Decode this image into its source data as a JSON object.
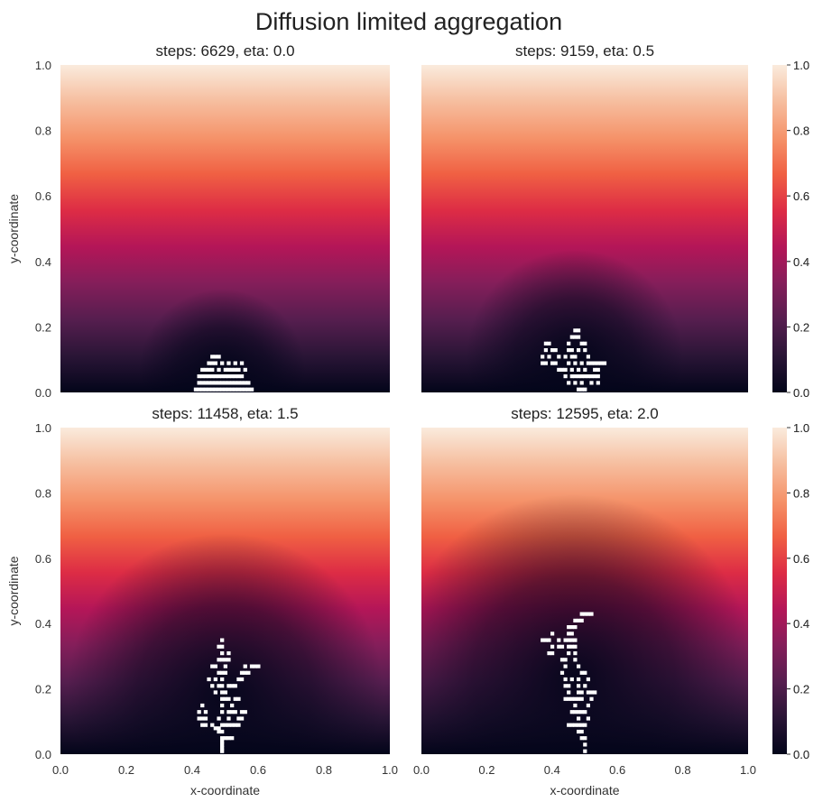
{
  "figure_title": "Diffusion limited aggregation",
  "colormap": {
    "name": "rocket",
    "stops": [
      "#03051a",
      "#2a1536",
      "#561e4f",
      "#841e5a",
      "#b41658",
      "#dd2c45",
      "#f06043",
      "#f5936a",
      "#f6be9f",
      "#faebdd"
    ]
  },
  "cluster_color": "#ffffff",
  "chart_data": [
    {
      "type": "heatmap",
      "title": "steps: 6629, eta: 0.0",
      "xlabel": "",
      "ylabel": "y-coordinate",
      "xlim": [
        0.0,
        1.0
      ],
      "ylim": [
        0.0,
        1.0
      ],
      "grid": false,
      "field": "concentration rising from 0.0 at the cluster/bottom to 1.0 at the top",
      "cluster_cells": [
        [
          0.41,
          0.01
        ],
        [
          0.42,
          0.01
        ],
        [
          0.43,
          0.01
        ],
        [
          0.44,
          0.01
        ],
        [
          0.45,
          0.01
        ],
        [
          0.46,
          0.01
        ],
        [
          0.47,
          0.01
        ],
        [
          0.48,
          0.01
        ],
        [
          0.49,
          0.01
        ],
        [
          0.5,
          0.01
        ],
        [
          0.51,
          0.01
        ],
        [
          0.52,
          0.01
        ],
        [
          0.53,
          0.01
        ],
        [
          0.54,
          0.01
        ],
        [
          0.55,
          0.01
        ],
        [
          0.56,
          0.01
        ],
        [
          0.57,
          0.01
        ],
        [
          0.58,
          0.01
        ],
        [
          0.42,
          0.03
        ],
        [
          0.43,
          0.03
        ],
        [
          0.44,
          0.03
        ],
        [
          0.45,
          0.03
        ],
        [
          0.46,
          0.03
        ],
        [
          0.47,
          0.03
        ],
        [
          0.48,
          0.03
        ],
        [
          0.49,
          0.03
        ],
        [
          0.5,
          0.03
        ],
        [
          0.51,
          0.03
        ],
        [
          0.52,
          0.03
        ],
        [
          0.53,
          0.03
        ],
        [
          0.54,
          0.03
        ],
        [
          0.55,
          0.03
        ],
        [
          0.56,
          0.03
        ],
        [
          0.57,
          0.03
        ],
        [
          0.42,
          0.05
        ],
        [
          0.43,
          0.05
        ],
        [
          0.44,
          0.05
        ],
        [
          0.45,
          0.05
        ],
        [
          0.46,
          0.05
        ],
        [
          0.47,
          0.05
        ],
        [
          0.48,
          0.05
        ],
        [
          0.49,
          0.05
        ],
        [
          0.5,
          0.05
        ],
        [
          0.51,
          0.05
        ],
        [
          0.52,
          0.05
        ],
        [
          0.53,
          0.05
        ],
        [
          0.54,
          0.05
        ],
        [
          0.55,
          0.05
        ],
        [
          0.43,
          0.07
        ],
        [
          0.44,
          0.07
        ],
        [
          0.45,
          0.07
        ],
        [
          0.46,
          0.07
        ],
        [
          0.48,
          0.07
        ],
        [
          0.5,
          0.07
        ],
        [
          0.51,
          0.07
        ],
        [
          0.52,
          0.07
        ],
        [
          0.53,
          0.07
        ],
        [
          0.54,
          0.07
        ],
        [
          0.56,
          0.07
        ],
        [
          0.45,
          0.09
        ],
        [
          0.46,
          0.09
        ],
        [
          0.47,
          0.09
        ],
        [
          0.49,
          0.09
        ],
        [
          0.51,
          0.09
        ],
        [
          0.53,
          0.09
        ],
        [
          0.55,
          0.09
        ],
        [
          0.46,
          0.11
        ],
        [
          0.47,
          0.11
        ],
        [
          0.48,
          0.11
        ]
      ]
    },
    {
      "type": "heatmap",
      "title": "steps: 9159, eta: 0.5",
      "xlabel": "",
      "ylabel": "",
      "xlim": [
        0.0,
        1.0
      ],
      "ylim": [
        0.0,
        1.0
      ],
      "grid": false,
      "field": "concentration rising from 0.0 at the cluster/bottom to 1.0 at the top",
      "cluster_cells": [
        [
          0.48,
          0.01
        ],
        [
          0.49,
          0.01
        ],
        [
          0.5,
          0.01
        ],
        [
          0.45,
          0.03
        ],
        [
          0.47,
          0.03
        ],
        [
          0.49,
          0.03
        ],
        [
          0.52,
          0.03
        ],
        [
          0.54,
          0.03
        ],
        [
          0.44,
          0.05
        ],
        [
          0.46,
          0.05
        ],
        [
          0.47,
          0.05
        ],
        [
          0.48,
          0.05
        ],
        [
          0.49,
          0.05
        ],
        [
          0.5,
          0.05
        ],
        [
          0.51,
          0.05
        ],
        [
          0.52,
          0.05
        ],
        [
          0.53,
          0.05
        ],
        [
          0.54,
          0.05
        ],
        [
          0.42,
          0.07
        ],
        [
          0.43,
          0.07
        ],
        [
          0.44,
          0.07
        ],
        [
          0.46,
          0.07
        ],
        [
          0.48,
          0.07
        ],
        [
          0.5,
          0.07
        ],
        [
          0.53,
          0.07
        ],
        [
          0.54,
          0.07
        ],
        [
          0.37,
          0.09
        ],
        [
          0.38,
          0.09
        ],
        [
          0.4,
          0.09
        ],
        [
          0.41,
          0.09
        ],
        [
          0.45,
          0.09
        ],
        [
          0.47,
          0.09
        ],
        [
          0.49,
          0.09
        ],
        [
          0.51,
          0.09
        ],
        [
          0.52,
          0.09
        ],
        [
          0.53,
          0.09
        ],
        [
          0.54,
          0.09
        ],
        [
          0.55,
          0.09
        ],
        [
          0.56,
          0.09
        ],
        [
          0.37,
          0.11
        ],
        [
          0.39,
          0.11
        ],
        [
          0.42,
          0.11
        ],
        [
          0.44,
          0.11
        ],
        [
          0.46,
          0.11
        ],
        [
          0.47,
          0.11
        ],
        [
          0.51,
          0.11
        ],
        [
          0.38,
          0.13
        ],
        [
          0.4,
          0.13
        ],
        [
          0.41,
          0.13
        ],
        [
          0.45,
          0.13
        ],
        [
          0.46,
          0.13
        ],
        [
          0.48,
          0.13
        ],
        [
          0.5,
          0.13
        ],
        [
          0.38,
          0.15
        ],
        [
          0.39,
          0.15
        ],
        [
          0.45,
          0.15
        ],
        [
          0.49,
          0.15
        ],
        [
          0.5,
          0.15
        ],
        [
          0.46,
          0.17
        ],
        [
          0.47,
          0.17
        ],
        [
          0.48,
          0.17
        ],
        [
          0.47,
          0.19
        ],
        [
          0.48,
          0.19
        ]
      ]
    },
    {
      "type": "heatmap",
      "title": "steps: 11458, eta: 1.5",
      "xlabel": "x-coordinate",
      "ylabel": "y-coordinate",
      "xlim": [
        0.0,
        1.0
      ],
      "ylim": [
        0.0,
        1.0
      ],
      "grid": false,
      "field": "concentration rising from 0.0 at the cluster/bottom to 1.0 at the top",
      "cluster_cells": [
        [
          0.49,
          0.01
        ],
        [
          0.49,
          0.02
        ],
        [
          0.49,
          0.03
        ],
        [
          0.49,
          0.04
        ],
        [
          0.49,
          0.05
        ],
        [
          0.5,
          0.05
        ],
        [
          0.51,
          0.05
        ],
        [
          0.52,
          0.05
        ],
        [
          0.48,
          0.07
        ],
        [
          0.49,
          0.07
        ],
        [
          0.47,
          0.08
        ],
        [
          0.48,
          0.08
        ],
        [
          0.43,
          0.09
        ],
        [
          0.44,
          0.09
        ],
        [
          0.46,
          0.09
        ],
        [
          0.49,
          0.09
        ],
        [
          0.5,
          0.09
        ],
        [
          0.51,
          0.09
        ],
        [
          0.52,
          0.09
        ],
        [
          0.53,
          0.09
        ],
        [
          0.54,
          0.09
        ],
        [
          0.42,
          0.11
        ],
        [
          0.43,
          0.11
        ],
        [
          0.44,
          0.11
        ],
        [
          0.48,
          0.11
        ],
        [
          0.51,
          0.11
        ],
        [
          0.54,
          0.11
        ],
        [
          0.55,
          0.11
        ],
        [
          0.42,
          0.13
        ],
        [
          0.44,
          0.13
        ],
        [
          0.49,
          0.13
        ],
        [
          0.51,
          0.13
        ],
        [
          0.52,
          0.13
        ],
        [
          0.53,
          0.13
        ],
        [
          0.55,
          0.13
        ],
        [
          0.56,
          0.13
        ],
        [
          0.43,
          0.15
        ],
        [
          0.49,
          0.15
        ],
        [
          0.52,
          0.15
        ],
        [
          0.49,
          0.17
        ],
        [
          0.5,
          0.17
        ],
        [
          0.51,
          0.17
        ],
        [
          0.53,
          0.17
        ],
        [
          0.54,
          0.17
        ],
        [
          0.47,
          0.19
        ],
        [
          0.49,
          0.19
        ],
        [
          0.5,
          0.19
        ],
        [
          0.46,
          0.21
        ],
        [
          0.48,
          0.21
        ],
        [
          0.49,
          0.21
        ],
        [
          0.51,
          0.21
        ],
        [
          0.52,
          0.21
        ],
        [
          0.53,
          0.21
        ],
        [
          0.45,
          0.23
        ],
        [
          0.47,
          0.23
        ],
        [
          0.49,
          0.23
        ],
        [
          0.54,
          0.23
        ],
        [
          0.55,
          0.23
        ],
        [
          0.48,
          0.25
        ],
        [
          0.49,
          0.25
        ],
        [
          0.5,
          0.25
        ],
        [
          0.55,
          0.25
        ],
        [
          0.56,
          0.25
        ],
        [
          0.57,
          0.25
        ],
        [
          0.46,
          0.27
        ],
        [
          0.47,
          0.27
        ],
        [
          0.5,
          0.27
        ],
        [
          0.56,
          0.27
        ],
        [
          0.58,
          0.27
        ],
        [
          0.59,
          0.27
        ],
        [
          0.6,
          0.27
        ],
        [
          0.48,
          0.29
        ],
        [
          0.49,
          0.29
        ],
        [
          0.5,
          0.29
        ],
        [
          0.51,
          0.29
        ],
        [
          0.49,
          0.31
        ],
        [
          0.51,
          0.31
        ],
        [
          0.48,
          0.33
        ],
        [
          0.49,
          0.33
        ],
        [
          0.49,
          0.35
        ]
      ]
    },
    {
      "type": "heatmap",
      "title": "steps: 12595, eta: 2.0",
      "xlabel": "x-coordinate",
      "ylabel": "",
      "xlim": [
        0.0,
        1.0
      ],
      "ylim": [
        0.0,
        1.0
      ],
      "grid": false,
      "field": "concentration rising from 0.0 at the cluster/bottom to 1.0 at the top",
      "cluster_cells": [
        [
          0.5,
          0.01
        ],
        [
          0.5,
          0.03
        ],
        [
          0.49,
          0.05
        ],
        [
          0.5,
          0.05
        ],
        [
          0.48,
          0.07
        ],
        [
          0.49,
          0.07
        ],
        [
          0.45,
          0.09
        ],
        [
          0.46,
          0.09
        ],
        [
          0.47,
          0.09
        ],
        [
          0.48,
          0.09
        ],
        [
          0.49,
          0.09
        ],
        [
          0.5,
          0.09
        ],
        [
          0.48,
          0.11
        ],
        [
          0.51,
          0.11
        ],
        [
          0.46,
          0.13
        ],
        [
          0.47,
          0.13
        ],
        [
          0.48,
          0.13
        ],
        [
          0.49,
          0.13
        ],
        [
          0.5,
          0.13
        ],
        [
          0.47,
          0.15
        ],
        [
          0.51,
          0.15
        ],
        [
          0.44,
          0.17
        ],
        [
          0.45,
          0.17
        ],
        [
          0.46,
          0.17
        ],
        [
          0.47,
          0.17
        ],
        [
          0.48,
          0.17
        ],
        [
          0.49,
          0.17
        ],
        [
          0.52,
          0.17
        ],
        [
          0.45,
          0.19
        ],
        [
          0.48,
          0.19
        ],
        [
          0.49,
          0.19
        ],
        [
          0.51,
          0.19
        ],
        [
          0.52,
          0.19
        ],
        [
          0.53,
          0.19
        ],
        [
          0.44,
          0.21
        ],
        [
          0.45,
          0.21
        ],
        [
          0.48,
          0.21
        ],
        [
          0.5,
          0.21
        ],
        [
          0.44,
          0.23
        ],
        [
          0.46,
          0.23
        ],
        [
          0.48,
          0.23
        ],
        [
          0.51,
          0.23
        ],
        [
          0.43,
          0.25
        ],
        [
          0.49,
          0.25
        ],
        [
          0.5,
          0.25
        ],
        [
          0.44,
          0.27
        ],
        [
          0.48,
          0.27
        ],
        [
          0.43,
          0.29
        ],
        [
          0.44,
          0.29
        ],
        [
          0.47,
          0.29
        ],
        [
          0.39,
          0.31
        ],
        [
          0.4,
          0.31
        ],
        [
          0.45,
          0.31
        ],
        [
          0.47,
          0.31
        ],
        [
          0.4,
          0.33
        ],
        [
          0.42,
          0.33
        ],
        [
          0.43,
          0.33
        ],
        [
          0.45,
          0.33
        ],
        [
          0.46,
          0.33
        ],
        [
          0.47,
          0.33
        ],
        [
          0.37,
          0.35
        ],
        [
          0.38,
          0.35
        ],
        [
          0.39,
          0.35
        ],
        [
          0.42,
          0.35
        ],
        [
          0.44,
          0.35
        ],
        [
          0.45,
          0.35
        ],
        [
          0.46,
          0.35
        ],
        [
          0.47,
          0.35
        ],
        [
          0.4,
          0.37
        ],
        [
          0.45,
          0.37
        ],
        [
          0.46,
          0.37
        ],
        [
          0.45,
          0.39
        ],
        [
          0.46,
          0.39
        ],
        [
          0.47,
          0.39
        ],
        [
          0.47,
          0.41
        ],
        [
          0.48,
          0.41
        ],
        [
          0.49,
          0.41
        ],
        [
          0.49,
          0.43
        ],
        [
          0.5,
          0.43
        ],
        [
          0.51,
          0.43
        ],
        [
          0.52,
          0.43
        ]
      ]
    }
  ],
  "axes": {
    "x_ticks": [
      "0.0",
      "0.2",
      "0.4",
      "0.6",
      "0.8",
      "1.0"
    ],
    "y_ticks": [
      "0.0",
      "0.2",
      "0.4",
      "0.6",
      "0.8",
      "1.0"
    ]
  },
  "colorbar": {
    "ticks": [
      "0.0",
      "0.2",
      "0.4",
      "0.6",
      "0.8",
      "1.0"
    ]
  }
}
